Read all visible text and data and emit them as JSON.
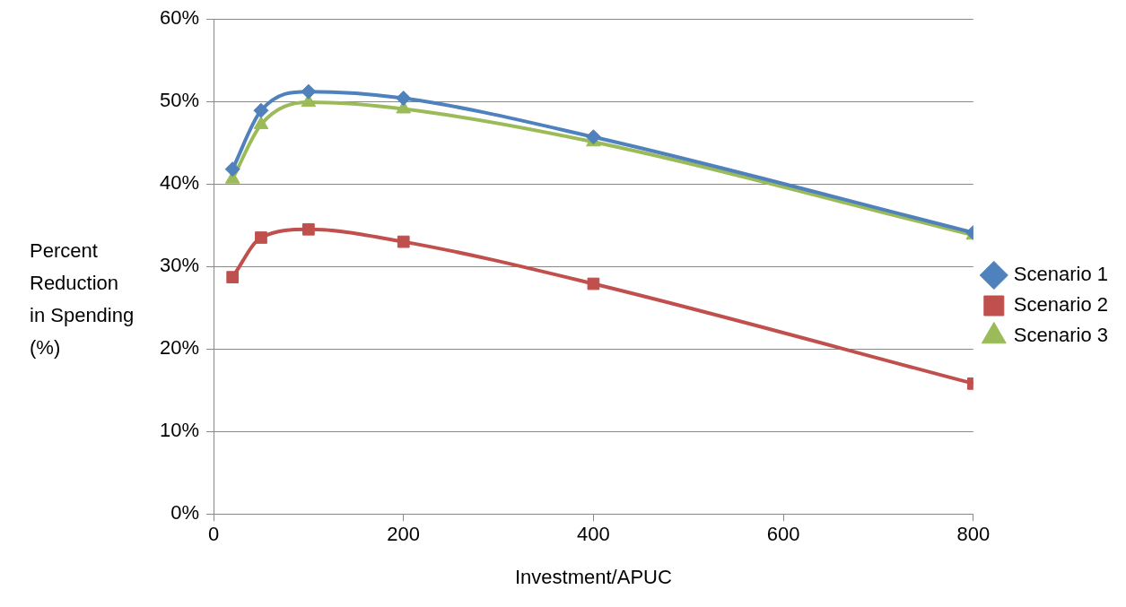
{
  "chart_data": {
    "type": "line",
    "xlabel": "Investment/APUC",
    "ylabel": "Percent Reduction in Spending (%)",
    "x": [
      20,
      50,
      100,
      200,
      400,
      800
    ],
    "series": [
      {
        "name": "Scenario 1",
        "color": "#4f81bd",
        "marker": "diamond",
        "values": [
          41.8,
          48.9,
          51.2,
          50.4,
          45.7,
          34.1
        ]
      },
      {
        "name": "Scenario 2",
        "color": "#c0504d",
        "marker": "square",
        "values": [
          28.7,
          33.5,
          34.5,
          33.0,
          27.9,
          15.8
        ]
      },
      {
        "name": "Scenario 3",
        "color": "#9bbb59",
        "marker": "triangle",
        "values": [
          40.6,
          47.2,
          49.9,
          49.1,
          45.1,
          33.8
        ]
      }
    ],
    "xlim": [
      0,
      800
    ],
    "xticks": [
      0,
      200,
      400,
      600,
      800
    ],
    "ylim": [
      0,
      60
    ],
    "yticks": [
      {
        "value": 0,
        "label": "0%"
      },
      {
        "value": 10,
        "label": "10%"
      },
      {
        "value": 20,
        "label": "20%"
      },
      {
        "value": 30,
        "label": "30%"
      },
      {
        "value": 40,
        "label": "40%"
      },
      {
        "value": 50,
        "label": "50%"
      },
      {
        "value": 60,
        "label": "60%"
      }
    ],
    "grid": "y",
    "legend": "right"
  }
}
